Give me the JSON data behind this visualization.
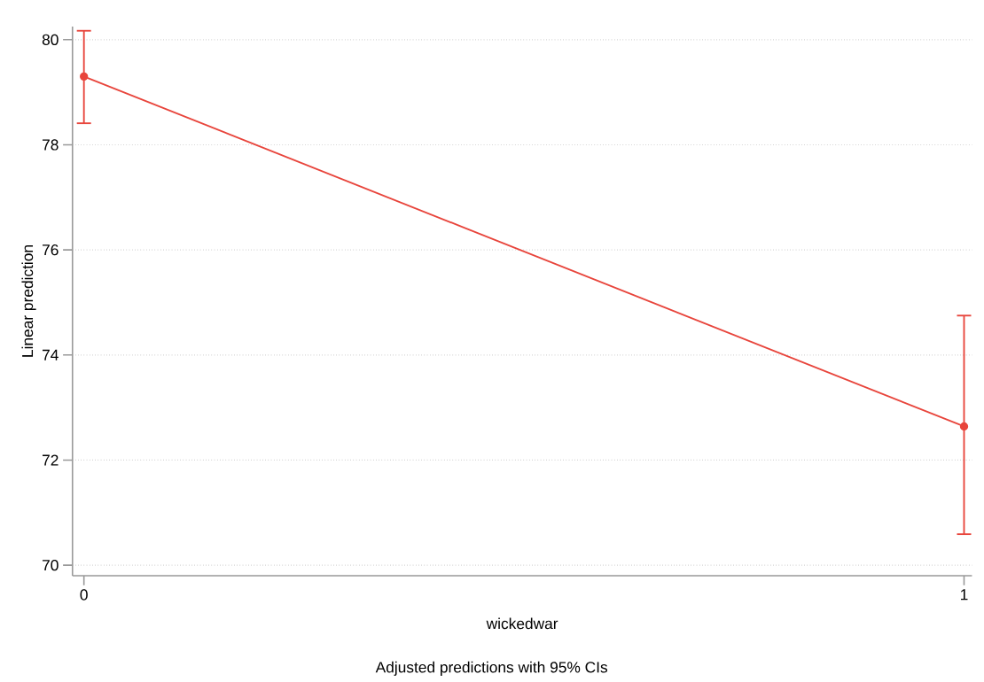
{
  "chart_data": {
    "type": "line",
    "title": "Adjusted predictions with 95% CIs",
    "xlabel": "wickedwar",
    "ylabel": "Linear prediction",
    "x": [
      0,
      1
    ],
    "series": [
      {
        "color": "#e8453c",
        "values": [
          79.3,
          72.64
        ],
        "errors": [
          [
            78.41,
            80.17
          ],
          [
            70.59,
            74.75
          ]
        ]
      }
    ],
    "xlim": [
      -0.013,
      1.009
    ],
    "ylim": [
      69.8,
      80.25
    ],
    "xticks": [
      0,
      1
    ],
    "yticks": [
      70,
      72,
      74,
      76,
      78,
      80
    ],
    "grid": "y",
    "marker": "circle",
    "line_style": "solid"
  }
}
